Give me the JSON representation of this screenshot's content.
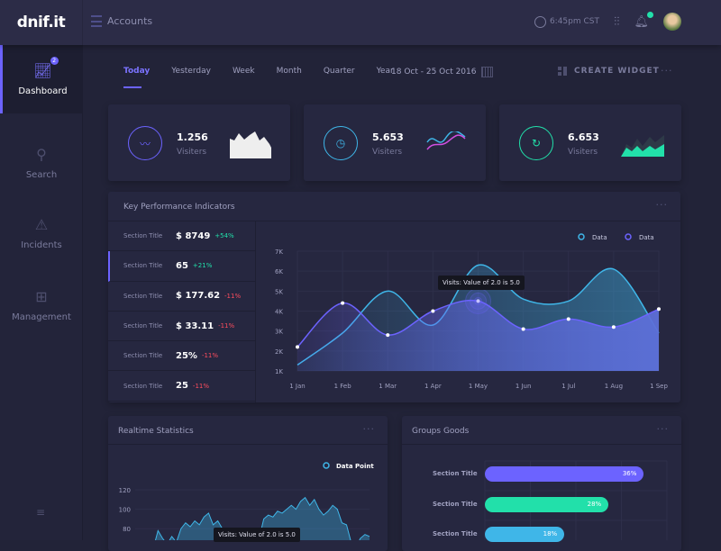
{
  "brand": "dnif.it",
  "header": {
    "breadcrumb": "Accounts",
    "time": "6:45pm CST",
    "notification_count": "1"
  },
  "sidebar": {
    "items": [
      {
        "label": "Dashboard",
        "icon": "chart-icon",
        "badge": "2",
        "active": true
      },
      {
        "label": "Search",
        "icon": "search-icon"
      },
      {
        "label": "Incidents",
        "icon": "warning-icon"
      },
      {
        "label": "Management",
        "icon": "grid-icon"
      }
    ]
  },
  "toolbar": {
    "tabs": [
      "Today",
      "Yesterday",
      "Week",
      "Month",
      "Quarter",
      "Year"
    ],
    "active_tab": "Today",
    "date_range": "18 Oct - 25 Oct 2016",
    "create_widget": "CREATE WIDGET"
  },
  "stats": [
    {
      "value": "1.256",
      "label": "Visiters",
      "color": "#6c63ff",
      "icon": "trend-icon"
    },
    {
      "value": "5.653",
      "label": "Visiters",
      "color": "#3fb6e8",
      "icon": "clock-icon"
    },
    {
      "value": "6.653",
      "label": "Visiters",
      "color": "#22e0aa",
      "icon": "refresh-icon"
    }
  ],
  "kpi": {
    "title": "Key Performance Indicators",
    "rows": [
      {
        "title": "Section Title",
        "value": "$ 8749",
        "change": "+54%",
        "dir": "up"
      },
      {
        "title": "Section Title",
        "value": "65",
        "change": "+21%",
        "dir": "up"
      },
      {
        "title": "Section Title",
        "value": "$ 177.62",
        "change": "-11%",
        "dir": "dn"
      },
      {
        "title": "Section Title",
        "value": "$ 33.11",
        "change": "-11%",
        "dir": "dn"
      },
      {
        "title": "Section Title",
        "value": "25%",
        "change": "-11%",
        "dir": "dn"
      },
      {
        "title": "Section Title",
        "value": "25",
        "change": "-11%",
        "dir": "dn"
      }
    ],
    "tooltip": "Visits: Value of 2.0 is 5.0"
  },
  "realtime": {
    "title": "Realtime Statistics",
    "legend": "Data Point",
    "tooltip": "Visits: Value of 2.0 is 5.0"
  },
  "groups": {
    "title": "Groups Goods",
    "bars": [
      {
        "label": "Section Title",
        "value": 36,
        "text": "36%",
        "color": "#6c63ff"
      },
      {
        "label": "Section Title",
        "value": 28,
        "text": "28%",
        "color": "#22e0aa"
      },
      {
        "label": "Section Title",
        "value": 18,
        "text": "18%",
        "color": "#3fb6e8"
      }
    ]
  },
  "chart_data": [
    {
      "type": "area",
      "categories": [
        "1 Jan",
        "1 Feb",
        "1 Mar",
        "1 Apr",
        "1 May",
        "1 Jun",
        "1 Jul",
        "1 Aug",
        "1 Sep"
      ],
      "yticks": [
        "1K",
        "2K",
        "3K",
        "4K",
        "5K",
        "6K",
        "7K"
      ],
      "ylim": [
        1,
        7
      ],
      "legend": "top-right",
      "grid": true,
      "series": [
        {
          "name": "Data",
          "color": "#3fb6e8",
          "values": [
            1.3,
            2.9,
            5.0,
            3.3,
            6.3,
            4.6,
            4.5,
            6.1,
            2.9
          ]
        },
        {
          "name": "Data",
          "color": "#6c63ff",
          "values": [
            2.2,
            4.4,
            2.8,
            4.0,
            4.5,
            3.1,
            3.6,
            3.2,
            4.1
          ]
        }
      ]
    },
    {
      "type": "area",
      "yticks": [
        "80",
        "100",
        "120"
      ],
      "legend": "top-right",
      "grid": true,
      "series": [
        {
          "name": "Data Point",
          "color": "#3fb6e8",
          "values": [
            58,
            62,
            60,
            78,
            70,
            64,
            72,
            66,
            80,
            86,
            82,
            88,
            84,
            92,
            96,
            84,
            88,
            80,
            74,
            70,
            66,
            62,
            60,
            58,
            64,
            70,
            90,
            94,
            92,
            98,
            96,
            100,
            104,
            100,
            108,
            112,
            104,
            110,
            100,
            94,
            98,
            104,
            100,
            86,
            84,
            66,
            60,
            70,
            74,
            72
          ]
        }
      ]
    }
  ]
}
